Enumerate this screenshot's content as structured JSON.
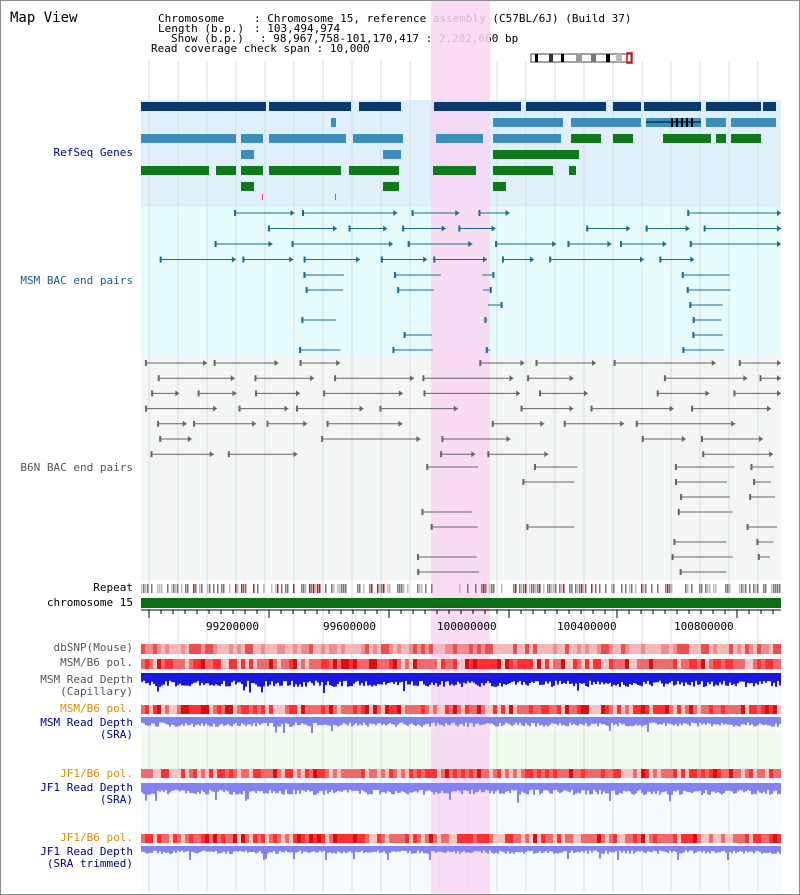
{
  "title": "Map View",
  "header": {
    "chromosome_key": "Chromosome",
    "chromosome_value": "Chromosome 15, reference assembly (C57BL/6J) (Build 37)",
    "length_key": "Length (b.p.)",
    "length_value": "103,494,974",
    "show_key": "Show (b.p.)",
    "show_value": "98,967,758-101,170,417 : 2,202,660 bp",
    "coverage_key": "Read coverage check span",
    "coverage_value": "10,000"
  },
  "tracks": {
    "refseq": "RefSeq Genes",
    "msm_bac": "MSM BAC end pairs",
    "b6n_bac": "B6N BAC end pairs",
    "repeat": "Repeat",
    "chromosome": "chromosome 15",
    "dbsnp": "dbSNP(Mouse)",
    "msm_b6_pol": "MSM/B6 pol.",
    "msm_depth_cap_1": "MSM Read Depth",
    "msm_depth_cap_2": "(Capillary)",
    "msm_b6_pol2": "MSM/B6 pol.",
    "msm_depth_sra_1": "MSM Read Depth",
    "msm_depth_sra_2": "(SRA)",
    "jf1_b6_pol": "JF1/B6 pol.",
    "jf1_depth_sra_1": "JF1 Read Depth",
    "jf1_depth_sra_2": "(SRA)",
    "jf1_b6_pol2": "JF1/B6 pol.",
    "jf1_depth_trim_1": "JF1 Read Depth",
    "jf1_depth_trim_2": "(SRA trimmed)"
  },
  "axis_ticks": [
    "99200000",
    "99600000",
    "100000000",
    "100400000",
    "100800000"
  ],
  "colors": {
    "refseq_bg": "#dff0fa",
    "bac_bg": "#e6fcfc",
    "highlight": "#f9d6f3",
    "dark_gene": "#0b3a6e",
    "mid_gene": "#3c8fbd",
    "green_gene": "#0f7a1a",
    "chrom_bar": "#0a6e14",
    "depth_dark": "#1818e0",
    "depth_light": "#8282f0"
  }
}
